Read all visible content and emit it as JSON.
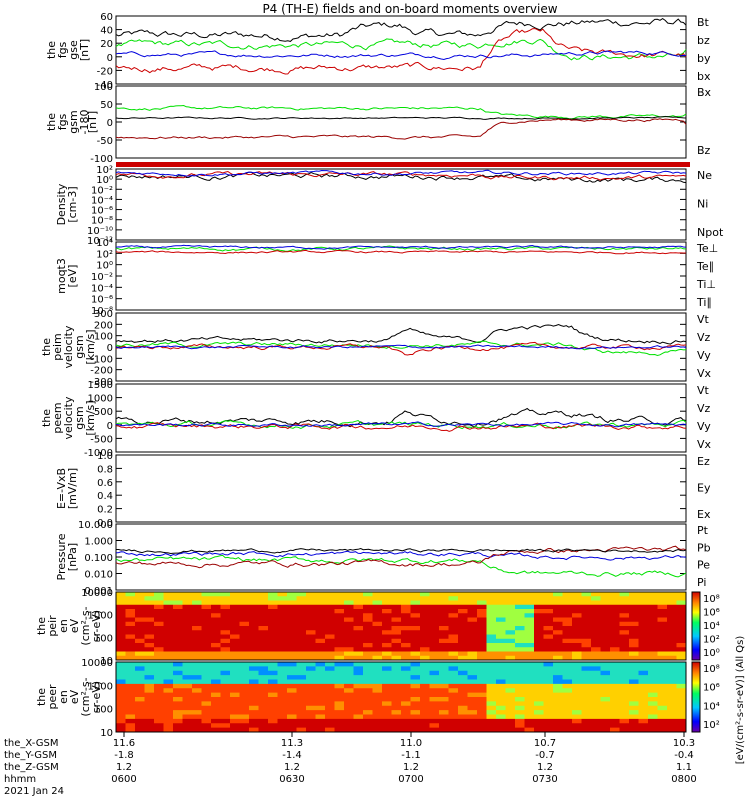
{
  "title": "P4 (TH-E) fields and on-board moments overview",
  "colors": {
    "black": "#000000",
    "red": "#cc0000",
    "green": "#00e000",
    "blue": "#0000dd",
    "darkred": "#990000"
  },
  "chart_data": [
    {
      "type": "line",
      "ylabel": [
        "the",
        "fgs",
        "gse",
        "[nT]"
      ],
      "yticks": [
        "60",
        "40",
        "20",
        "0",
        "-20",
        "-40"
      ],
      "ylim": [
        -40,
        65
      ],
      "legend": [
        {
          "text": "Bt",
          "color": "black"
        },
        {
          "text": "bz",
          "color": "red"
        },
        {
          "text": "by",
          "color": "green"
        },
        {
          "text": "bx",
          "color": "blue"
        }
      ]
    },
    {
      "type": "line",
      "ylabel": [
        "the",
        "fgs",
        "gsm",
        "-180"
      ],
      "ylabel2": "[nT]",
      "yticks": [
        "100",
        "50",
        "0",
        "-50",
        "-100"
      ],
      "ylim": [
        -125,
        100
      ],
      "legend": [
        {
          "text": "Bx",
          "color": "green"
        },
        {
          "text": "Bz",
          "color": "darkred"
        }
      ]
    },
    {
      "type": "line",
      "ylabel": [
        "Density",
        "[cm-3]"
      ],
      "yticks": [
        "10²",
        "10⁰",
        "10⁻²",
        "10⁻⁴",
        "10⁻⁶",
        "10⁻⁸",
        "10⁻¹⁰",
        "10⁻¹²"
      ],
      "scale": "log",
      "legend": [
        {
          "text": "Ne",
          "color": "red"
        },
        {
          "text": "Ni",
          "color": "black"
        },
        {
          "text": "Npot",
          "color": "blue"
        }
      ]
    },
    {
      "type": "line",
      "ylabel": [
        "moqt3",
        "[eV]"
      ],
      "yticks": [
        "10⁴",
        "10²",
        "10⁰",
        "10⁻²",
        "10⁻⁴",
        "10⁻⁶",
        "10⁻⁸"
      ],
      "scale": "log",
      "legend": [
        {
          "text": "Te⊥",
          "color": "red"
        },
        {
          "text": "Te∥",
          "color": "black"
        },
        {
          "text": "Ti⊥",
          "color": "blue"
        },
        {
          "text": "Ti∥",
          "color": "green"
        }
      ]
    },
    {
      "type": "line",
      "ylabel": [
        "the",
        "peim",
        "velocity",
        "gsm",
        "[km/s]"
      ],
      "yticks": [
        "300",
        "200",
        "100",
        "0",
        "-100",
        "-200",
        "-300"
      ],
      "ylim": [
        -300,
        300
      ],
      "legend": [
        {
          "text": "Vt",
          "color": "black"
        },
        {
          "text": "Vz",
          "color": "red"
        },
        {
          "text": "Vy",
          "color": "green"
        },
        {
          "text": "Vx",
          "color": "blue"
        }
      ]
    },
    {
      "type": "line",
      "ylabel": [
        "the",
        "peem",
        "velocity",
        "gsm",
        "[km/s]"
      ],
      "yticks": [
        "1500",
        "1000",
        "500",
        "0",
        "-500",
        "-1000"
      ],
      "ylim": [
        -1000,
        1500
      ],
      "legend": [
        {
          "text": "Vt",
          "color": "black"
        },
        {
          "text": "Vz",
          "color": "red"
        },
        {
          "text": "Vy",
          "color": "green"
        },
        {
          "text": "Vx",
          "color": "blue"
        }
      ]
    },
    {
      "type": "line",
      "ylabel": [
        "E=-VxB",
        "[mV/m]"
      ],
      "yticks": [
        "1.0",
        "0.8",
        "0.6",
        "0.4",
        "0.2",
        "0.0"
      ],
      "ylim": [
        0,
        1
      ],
      "legend": [
        {
          "text": "Ez",
          "color": "red"
        },
        {
          "text": "Ey",
          "color": "green"
        },
        {
          "text": "Ex",
          "color": "blue"
        }
      ]
    },
    {
      "type": "line",
      "ylabel": [
        "Pressure",
        "[nPa]"
      ],
      "yticks": [
        "10.000",
        "1.000",
        "0.100",
        "0.010",
        "0.001"
      ],
      "scale": "log",
      "legend": [
        {
          "text": "Pt",
          "color": "black"
        },
        {
          "text": "Pb",
          "color": "darkred"
        },
        {
          "text": "Pe",
          "color": "green"
        },
        {
          "text": "Pi",
          "color": "blue"
        }
      ]
    },
    {
      "type": "heatmap",
      "ylabel": [
        "the",
        "peir",
        "en",
        "eV",
        "(cm²-s-",
        "sr-eV)"
      ],
      "yticks": [
        "10000",
        "1000",
        "100",
        "10"
      ],
      "colorbar_ticks": [
        "10⁸",
        "10⁶",
        "10⁴",
        "10²",
        "10⁰"
      ]
    },
    {
      "type": "heatmap",
      "ylabel": [
        "the",
        "peer",
        "en",
        "eV",
        "(cm²-s-",
        "sr-eV)"
      ],
      "yticks": [
        "10000",
        "1000",
        "100",
        "10"
      ],
      "colorbar_ticks": [
        "10⁸",
        "10⁶",
        "10⁴",
        "10²"
      ]
    }
  ],
  "colorbar_label": "[eV/(cm²-s-sr-eV)] (All Qs)",
  "xaxis": {
    "row_labels": [
      "the_X-GSM",
      "the_Y-GSM",
      "the_Z-GSM",
      "hhmm",
      "2021 Jan 24"
    ],
    "columns": [
      {
        "x": "11.6",
        "y": "-1.8",
        "z": "1.2",
        "hhmm": "0600"
      },
      {
        "x": "11.3",
        "y": "-1.4",
        "z": "1.2",
        "hhmm": "0630"
      },
      {
        "x": "11.0",
        "y": "-1.1",
        "z": "1.2",
        "hhmm": "0700"
      },
      {
        "x": "10.7",
        "y": "-0.7",
        "z": "1.2",
        "hhmm": "0730"
      },
      {
        "x": "10.3",
        "y": "-0.4",
        "z": "1.1",
        "hhmm": "0800"
      }
    ]
  }
}
